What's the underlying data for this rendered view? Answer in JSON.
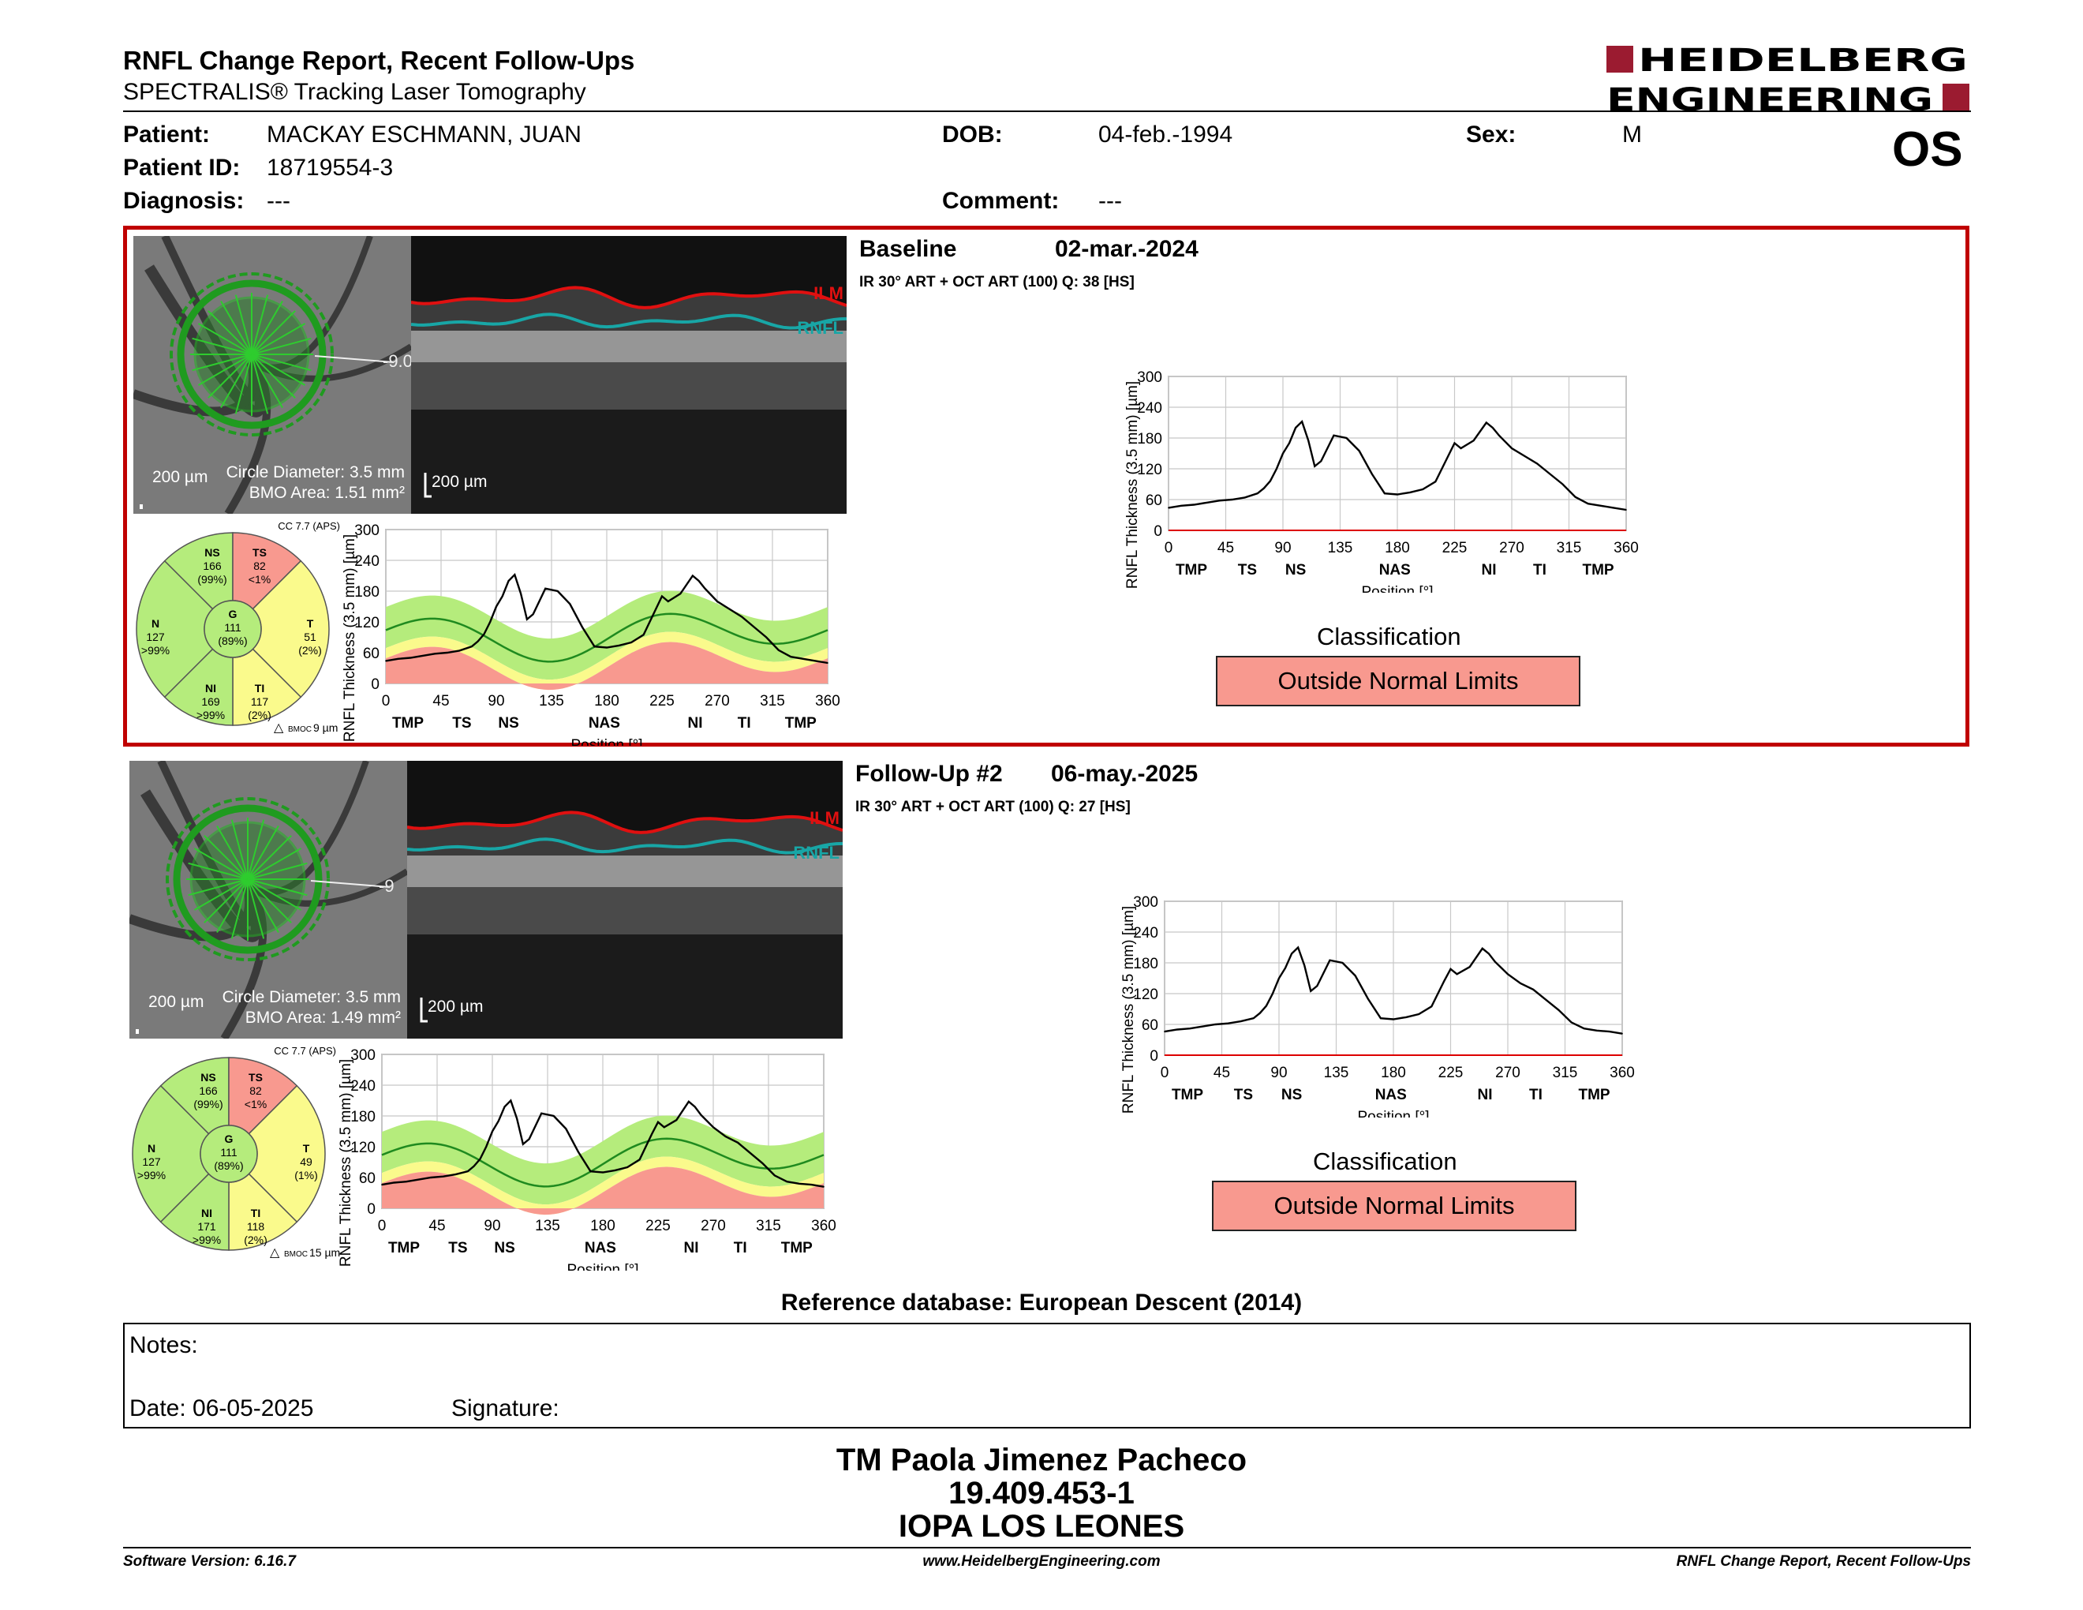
{
  "header": {
    "title": "RNFL Change Report, Recent Follow-Ups",
    "subtitle": "SPECTRALIS® Tracking Laser Tomography",
    "logo_line1": "HEIDELBERG",
    "logo_line2": "ENGINEERING",
    "eye": "OS"
  },
  "patient": {
    "name_label": "Patient:",
    "name": "MACKAY ESCHMANN, JUAN",
    "id_label": "Patient ID:",
    "id": "18719554-3",
    "diagnosis_label": "Diagnosis:",
    "diagnosis": "---",
    "dob_label": "DOB:",
    "dob": "04-feb.-1994",
    "comment_label": "Comment:",
    "comment": "---",
    "sex_label": "Sex:",
    "sex": "M"
  },
  "colors": {
    "outside": "#f8998f",
    "borderline": "#fafa8c",
    "within": "#b5ec7c",
    "frame": "#c00000"
  },
  "scans": [
    {
      "title": "Baseline",
      "date": "02-mar.-2024",
      "scan_info": "IR 30° ART + OCT ART (100) Q: 38 [HS]",
      "fundus": {
        "scale": "200 µm",
        "circle_diameter": "Circle Diameter: 3.5 mm",
        "bmo_area": "BMO Area: 1.51 mm²",
        "angle": "-9.0"
      },
      "oct": {
        "scale": "200 µm",
        "ilm": "ILM",
        "rnfl": "RNFL"
      },
      "sectors": {
        "cc": "CC 7.7 (APS)",
        "bmoc": "9 µm",
        "NS": {
          "label": "NS",
          "value": "166",
          "pct": "(99%)"
        },
        "TS": {
          "label": "TS",
          "value": "82",
          "pct": "<1%"
        },
        "N": {
          "label": "N",
          "value": "127",
          "pct": ">99%"
        },
        "G": {
          "label": "G",
          "value": "111",
          "pct": "(89%)"
        },
        "T": {
          "label": "T",
          "value": "51",
          "pct": "(2%)"
        },
        "NI": {
          "label": "NI",
          "value": "169",
          "pct": ">99%"
        },
        "TI": {
          "label": "TI",
          "value": "117",
          "pct": "(2%)"
        }
      },
      "classification_label": "Classification",
      "classification": "Outside Normal Limits"
    },
    {
      "title": "Follow-Up #2",
      "date": "06-may.-2025",
      "scan_info": "IR 30° ART + OCT ART (100) Q: 27 [HS]",
      "fundus": {
        "scale": "200 µm",
        "circle_diameter": "Circle Diameter: 3.5 mm",
        "bmo_area": "BMO Area: 1.49 mm²",
        "angle": "-9"
      },
      "oct": {
        "scale": "200 µm",
        "ilm": "ILM",
        "rnfl": "RNFL"
      },
      "sectors": {
        "cc": "CC 7.7 (APS)",
        "bmoc": "15 µm",
        "NS": {
          "label": "NS",
          "value": "166",
          "pct": "(99%)"
        },
        "TS": {
          "label": "TS",
          "value": "82",
          "pct": "<1%"
        },
        "N": {
          "label": "N",
          "value": "127",
          "pct": ">99%"
        },
        "G": {
          "label": "G",
          "value": "111",
          "pct": "(89%)"
        },
        "T": {
          "label": "T",
          "value": "49",
          "pct": "(1%)"
        },
        "NI": {
          "label": "NI",
          "value": "171",
          "pct": ">99%"
        },
        "TI": {
          "label": "TI",
          "value": "118",
          "pct": "(2%)"
        }
      },
      "classification_label": "Classification",
      "classification": "Outside Normal Limits"
    }
  ],
  "chart_data": [
    {
      "type": "line",
      "ylabel": "RNFL Thickness (3.5 mm) [µm]",
      "xlabel": "Position [°]",
      "xlim": [
        0,
        360
      ],
      "ylim": [
        0,
        300
      ],
      "x_ticks": [
        0,
        45,
        90,
        135,
        180,
        225,
        270,
        315,
        360
      ],
      "y_ticks": [
        0,
        60,
        120,
        180,
        240,
        300
      ],
      "sector_labels": [
        {
          "x": 18,
          "label": "TMP"
        },
        {
          "x": 62,
          "label": "TS"
        },
        {
          "x": 100,
          "label": "NS"
        },
        {
          "x": 178,
          "label": "NAS"
        },
        {
          "x": 252,
          "label": "NI"
        },
        {
          "x": 292,
          "label": "TI"
        },
        {
          "x": 338,
          "label": "TMP"
        }
      ],
      "series": [
        {
          "values_x": [
            0,
            10,
            20,
            30,
            40,
            50,
            60,
            70,
            75,
            80,
            85,
            90,
            95,
            100,
            105,
            110,
            115,
            120,
            130,
            140,
            150,
            160,
            170,
            180,
            190,
            200,
            210,
            220,
            225,
            230,
            240,
            250,
            255,
            260,
            270,
            280,
            290,
            300,
            310,
            320,
            330,
            340,
            350,
            360
          ],
          "values_y": [
            44,
            48,
            50,
            54,
            58,
            60,
            64,
            72,
            82,
            96,
            120,
            150,
            170,
            200,
            212,
            175,
            125,
            135,
            185,
            180,
            155,
            110,
            72,
            70,
            74,
            80,
            95,
            145,
            170,
            160,
            175,
            210,
            200,
            185,
            160,
            145,
            130,
            110,
            90,
            65,
            52,
            48,
            44,
            40
          ]
        }
      ]
    },
    {
      "type": "line",
      "ylabel": "RNFL Thickness (3.5 mm) [µm]",
      "xlabel": "Position [°]",
      "xlim": [
        0,
        360
      ],
      "ylim": [
        0,
        300
      ],
      "x_ticks": [
        0,
        45,
        90,
        135,
        180,
        225,
        270,
        315,
        360
      ],
      "y_ticks": [
        0,
        60,
        120,
        180,
        240,
        300
      ],
      "sector_labels": [
        {
          "x": 18,
          "label": "TMP"
        },
        {
          "x": 62,
          "label": "TS"
        },
        {
          "x": 100,
          "label": "NS"
        },
        {
          "x": 178,
          "label": "NAS"
        },
        {
          "x": 252,
          "label": "NI"
        },
        {
          "x": 292,
          "label": "TI"
        },
        {
          "x": 338,
          "label": "TMP"
        }
      ],
      "series": [
        {
          "values_x": [
            0,
            10,
            20,
            30,
            40,
            50,
            60,
            70,
            75,
            80,
            85,
            90,
            95,
            100,
            105,
            110,
            115,
            120,
            130,
            140,
            150,
            160,
            170,
            180,
            190,
            200,
            210,
            220,
            225,
            230,
            240,
            250,
            255,
            260,
            270,
            280,
            290,
            300,
            310,
            320,
            330,
            340,
            350,
            360
          ],
          "values_y": [
            46,
            50,
            52,
            56,
            60,
            62,
            66,
            72,
            82,
            96,
            120,
            150,
            170,
            198,
            210,
            175,
            125,
            135,
            185,
            180,
            155,
            110,
            72,
            70,
            74,
            80,
            95,
            145,
            168,
            158,
            172,
            208,
            198,
            182,
            158,
            140,
            128,
            108,
            88,
            64,
            52,
            48,
            46,
            42
          ]
        }
      ]
    },
    {
      "type": "area",
      "ylabel": "RNFL Thickness (3.5 mm) [µm]",
      "xlabel": "Position [°]",
      "xlim": [
        0,
        360
      ],
      "ylim": [
        0,
        300
      ],
      "x_ticks": [
        0,
        45,
        90,
        135,
        180,
        225,
        270,
        315,
        360
      ],
      "y_ticks": [
        0,
        60,
        120,
        180,
        240,
        300
      ],
      "sector_labels": [
        {
          "x": 18,
          "label": "TMP"
        },
        {
          "x": 62,
          "label": "TS"
        },
        {
          "x": 100,
          "label": "NS"
        },
        {
          "x": 178,
          "label": "NAS"
        },
        {
          "x": 252,
          "label": "NI"
        },
        {
          "x": 292,
          "label": "TI"
        },
        {
          "x": 338,
          "label": "TMP"
        }
      ],
      "series": [
        {
          "values_x": [
            0,
            10,
            20,
            30,
            40,
            50,
            60,
            70,
            75,
            80,
            85,
            90,
            95,
            100,
            105,
            110,
            115,
            120,
            130,
            140,
            150,
            160,
            170,
            180,
            190,
            200,
            210,
            220,
            225,
            230,
            240,
            250,
            255,
            260,
            270,
            280,
            290,
            300,
            310,
            320,
            330,
            340,
            350,
            360
          ],
          "values_y": [
            44,
            48,
            50,
            54,
            58,
            60,
            64,
            72,
            82,
            96,
            120,
            150,
            170,
            200,
            212,
            175,
            125,
            135,
            185,
            180,
            155,
            110,
            72,
            70,
            74,
            80,
            95,
            145,
            170,
            160,
            175,
            210,
            200,
            185,
            160,
            145,
            130,
            110,
            90,
            65,
            52,
            48,
            44,
            40
          ]
        }
      ]
    },
    {
      "type": "area",
      "ylabel": "RNFL Thickness (3.5 mm) [µm]",
      "xlabel": "Position [°]",
      "xlim": [
        0,
        360
      ],
      "ylim": [
        0,
        300
      ],
      "x_ticks": [
        0,
        45,
        90,
        135,
        180,
        225,
        270,
        315,
        360
      ],
      "y_ticks": [
        0,
        60,
        120,
        180,
        240,
        300
      ],
      "sector_labels": [
        {
          "x": 18,
          "label": "TMP"
        },
        {
          "x": 62,
          "label": "TS"
        },
        {
          "x": 100,
          "label": "NS"
        },
        {
          "x": 178,
          "label": "NAS"
        },
        {
          "x": 252,
          "label": "NI"
        },
        {
          "x": 292,
          "label": "TI"
        },
        {
          "x": 338,
          "label": "TMP"
        }
      ],
      "series": [
        {
          "values_x": [
            0,
            10,
            20,
            30,
            40,
            50,
            60,
            70,
            75,
            80,
            85,
            90,
            95,
            100,
            105,
            110,
            115,
            120,
            130,
            140,
            150,
            160,
            170,
            180,
            190,
            200,
            210,
            220,
            225,
            230,
            240,
            250,
            255,
            260,
            270,
            280,
            290,
            300,
            310,
            320,
            330,
            340,
            350,
            360
          ],
          "values_y": [
            46,
            50,
            52,
            56,
            60,
            62,
            66,
            72,
            82,
            96,
            120,
            150,
            170,
            198,
            210,
            175,
            125,
            135,
            185,
            180,
            155,
            110,
            72,
            70,
            74,
            80,
            95,
            145,
            168,
            158,
            172,
            208,
            198,
            182,
            158,
            140,
            128,
            108,
            88,
            64,
            52,
            48,
            46,
            42
          ]
        }
      ]
    }
  ],
  "reference_db": "Reference database: European Descent (2014)",
  "notes": {
    "label": "Notes:",
    "date": "Date: 06-05-2025",
    "signature": "Signature:"
  },
  "signature_block": {
    "line1": "TM Paola Jimenez Pacheco",
    "line2": "19.409.453-1",
    "line3": "IOPA LOS LEONES"
  },
  "footer": {
    "left": "Software Version: 6.16.7",
    "center": "www.HeidelbergEngineering.com",
    "right": "RNFL Change Report, Recent Follow-Ups"
  }
}
